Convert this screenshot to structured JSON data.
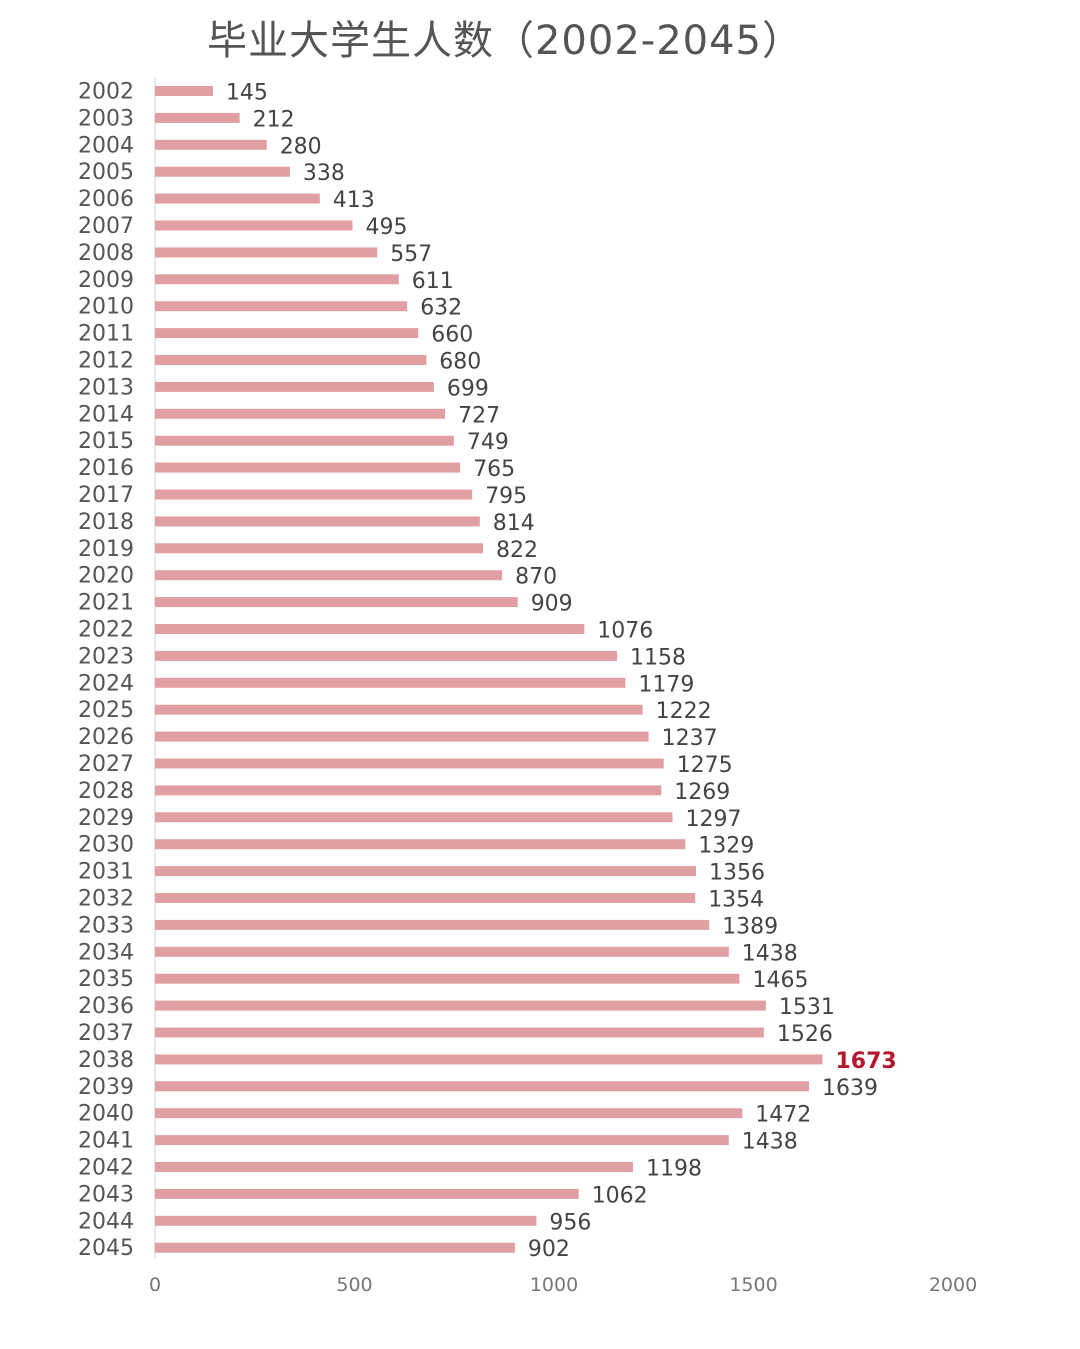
{
  "chart_data": {
    "type": "bar",
    "orientation": "horizontal",
    "title": "毕业大学生人数（2002-2045）",
    "xlabel": "",
    "ylabel": "",
    "xlim": [
      0,
      2000
    ],
    "xticks": [
      "0",
      "500",
      "1000",
      "1500",
      "2000"
    ],
    "grid": false,
    "legend": "none",
    "bar_color": "#e0a0a3",
    "highlight_color": "#b3192b",
    "highlight_category": "2038",
    "categories": [
      "2002",
      "2003",
      "2004",
      "2005",
      "2006",
      "2007",
      "2008",
      "2009",
      "2010",
      "2011",
      "2012",
      "2013",
      "2014",
      "2015",
      "2016",
      "2017",
      "2018",
      "2019",
      "2020",
      "2021",
      "2022",
      "2023",
      "2024",
      "2025",
      "2026",
      "2027",
      "2028",
      "2029",
      "2030",
      "2031",
      "2032",
      "2033",
      "2034",
      "2035",
      "2036",
      "2037",
      "2038",
      "2039",
      "2040",
      "2041",
      "2042",
      "2043",
      "2044",
      "2045"
    ],
    "values": [
      145,
      212,
      280,
      338,
      413,
      495,
      557,
      611,
      632,
      660,
      680,
      699,
      727,
      749,
      765,
      795,
      814,
      822,
      870,
      909,
      1076,
      1158,
      1179,
      1222,
      1237,
      1275,
      1269,
      1297,
      1329,
      1356,
      1354,
      1389,
      1438,
      1465,
      1531,
      1526,
      1673,
      1639,
      1472,
      1438,
      1198,
      1062,
      956,
      902
    ]
  }
}
